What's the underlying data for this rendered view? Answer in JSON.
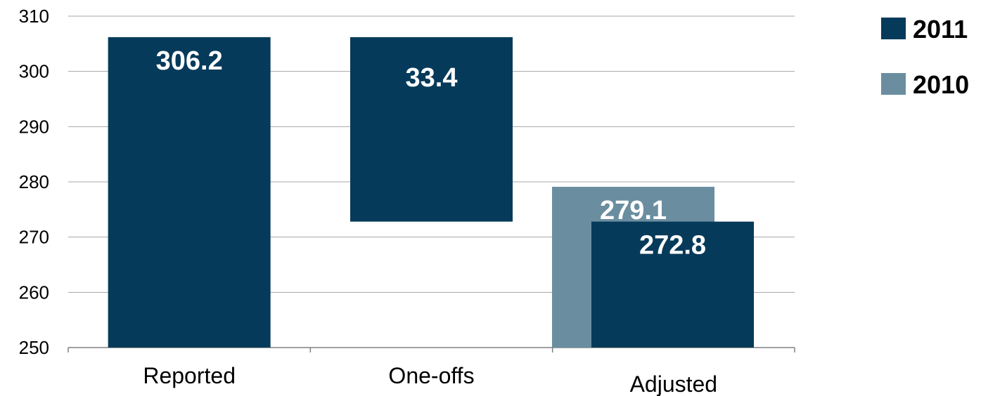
{
  "chart_data": {
    "type": "bar",
    "title": "",
    "xlabel": "",
    "ylabel": "",
    "ylim": [
      250,
      310
    ],
    "yticks": [
      250,
      260,
      270,
      280,
      290,
      300,
      310
    ],
    "grid": true,
    "legend_position": "top-right",
    "categories": [
      "Reported",
      "One-offs",
      "Adjusted"
    ],
    "series": [
      {
        "name": "2011",
        "color": "#063a5a",
        "bars": [
          {
            "category": "Reported",
            "from": 250,
            "to": 306.2,
            "label": "306.2"
          },
          {
            "category": "One-offs",
            "from": 272.8,
            "to": 306.2,
            "label": "33.4"
          },
          {
            "category": "Adjusted",
            "from": 250,
            "to": 272.8,
            "label": "272.8"
          }
        ]
      },
      {
        "name": "2010",
        "color": "#6a8ea0",
        "bars": [
          {
            "category": "Adjusted",
            "from": 250,
            "to": 279.1,
            "label": "279.1"
          }
        ]
      }
    ]
  }
}
